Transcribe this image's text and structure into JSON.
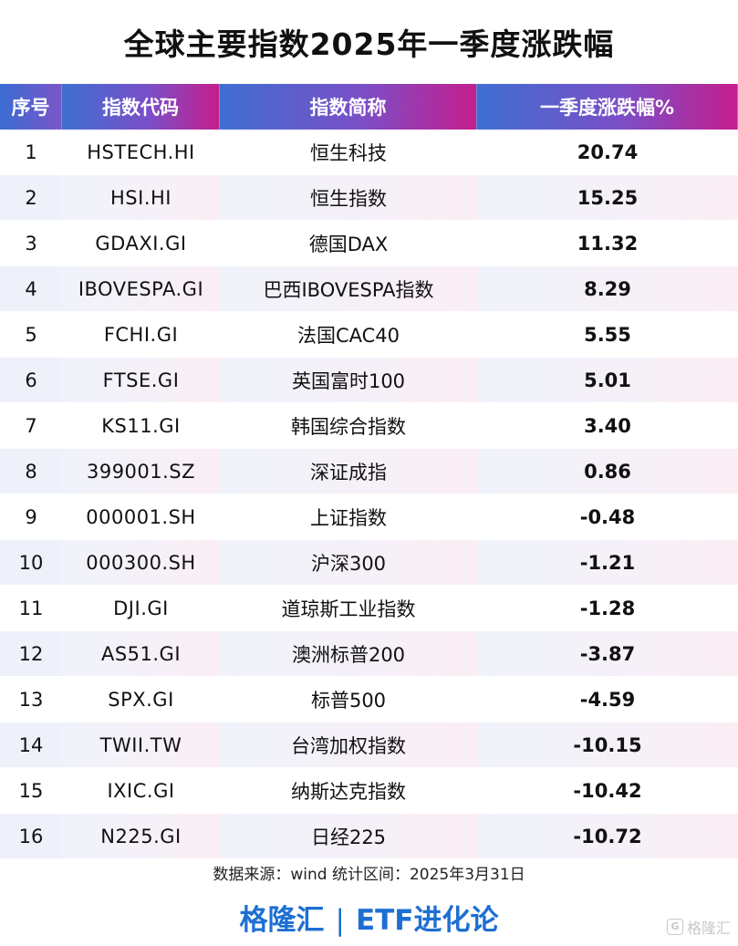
{
  "title": "全球主要指数2025年一季度涨跌幅",
  "headers": [
    "序号",
    "指数代码",
    "指数简称",
    "一季度涨跌幅%"
  ],
  "rows": [
    {
      "idx": "1",
      "code": "HSTECH.HI",
      "name": "恒生科技",
      "change": "20.74",
      "dir": "pos"
    },
    {
      "idx": "2",
      "code": "HSI.HI",
      "name": "恒生指数",
      "change": "15.25",
      "dir": "pos"
    },
    {
      "idx": "3",
      "code": "GDAXI.GI",
      "name": "德国DAX",
      "change": "11.32",
      "dir": "pos"
    },
    {
      "idx": "4",
      "code": "IBOVESPA.GI",
      "name": "巴西IBOVESPA指数",
      "change": "8.29",
      "dir": "pos"
    },
    {
      "idx": "5",
      "code": "FCHI.GI",
      "name": "法国CAC40",
      "change": "5.55",
      "dir": "pos"
    },
    {
      "idx": "6",
      "code": "FTSE.GI",
      "name": "英国富时100",
      "change": "5.01",
      "dir": "pos"
    },
    {
      "idx": "7",
      "code": "KS11.GI",
      "name": "韩国综合指数",
      "change": "3.40",
      "dir": "pos"
    },
    {
      "idx": "8",
      "code": "399001.SZ",
      "name": "深证成指",
      "change": "0.86",
      "dir": "pos"
    },
    {
      "idx": "9",
      "code": "000001.SH",
      "name": "上证指数",
      "change": "-0.48",
      "dir": "neg"
    },
    {
      "idx": "10",
      "code": "000300.SH",
      "name": "沪深300",
      "change": "-1.21",
      "dir": "neg"
    },
    {
      "idx": "11",
      "code": "DJI.GI",
      "name": "道琼斯工业指数",
      "change": "-1.28",
      "dir": "neg"
    },
    {
      "idx": "12",
      "code": "AS51.GI",
      "name": "澳洲标普200",
      "change": "-3.87",
      "dir": "neg"
    },
    {
      "idx": "13",
      "code": "SPX.GI",
      "name": "标普500",
      "change": "-4.59",
      "dir": "neg"
    },
    {
      "idx": "14",
      "code": "TWII.TW",
      "name": "台湾加权指数",
      "change": "-10.15",
      "dir": "neg"
    },
    {
      "idx": "15",
      "code": "IXIC.GI",
      "name": "纳斯达克指数",
      "change": "-10.42",
      "dir": "neg"
    },
    {
      "idx": "16",
      "code": "N225.GI",
      "name": "日经225",
      "change": "-10.72",
      "dir": "neg"
    }
  ],
  "colors": {
    "positive": "#e8141b",
    "negative": "#1ea24a",
    "brand": "#1e6fd2"
  },
  "footer": {
    "source": "数据来源：wind 统计区间：2025年3月31日",
    "brand_left": "格隆汇",
    "brand_sep": "|",
    "brand_right": "ETF进化论"
  },
  "watermark": {
    "icon": "G",
    "text": "格隆汇"
  }
}
